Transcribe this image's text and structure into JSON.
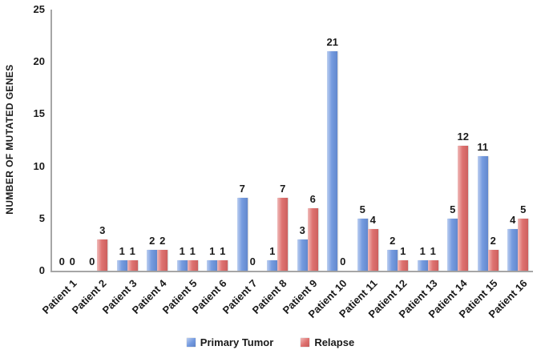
{
  "chart_data": {
    "type": "bar",
    "title": "",
    "xlabel": "",
    "ylabel": "NUMBER OF MUTATED GENES",
    "categories": [
      "Patient 1",
      "Patient 2",
      "Patient 3",
      "Patient 4",
      "Patient 5",
      "Patient 6",
      "Patient 7",
      "Patient 8",
      "Patient 9",
      "Patient 10",
      "Patient 11",
      "Patient 12",
      "Patient 13",
      "Patient 14",
      "Patient 15",
      "Patient 16"
    ],
    "series": [
      {
        "name": "Primary Tumor",
        "values": [
          0,
          0,
          1,
          2,
          1,
          1,
          7,
          1,
          3,
          21,
          5,
          2,
          1,
          5,
          11,
          4
        ]
      },
      {
        "name": "Relapse",
        "values": [
          0,
          3,
          1,
          2,
          1,
          1,
          0,
          7,
          6,
          0,
          4,
          1,
          1,
          12,
          2,
          5
        ]
      }
    ],
    "ylim": [
      0,
      25
    ],
    "yticks": [
      0,
      5,
      10,
      15,
      20,
      25
    ],
    "grid": false,
    "legend_position": "bottom",
    "data_labels_shown": true,
    "colors": {
      "primary_tumor": "#6a93dd",
      "relapse": "#dc6765",
      "axis_line": "#a6a6a6",
      "text": "#1a1a1a"
    }
  }
}
